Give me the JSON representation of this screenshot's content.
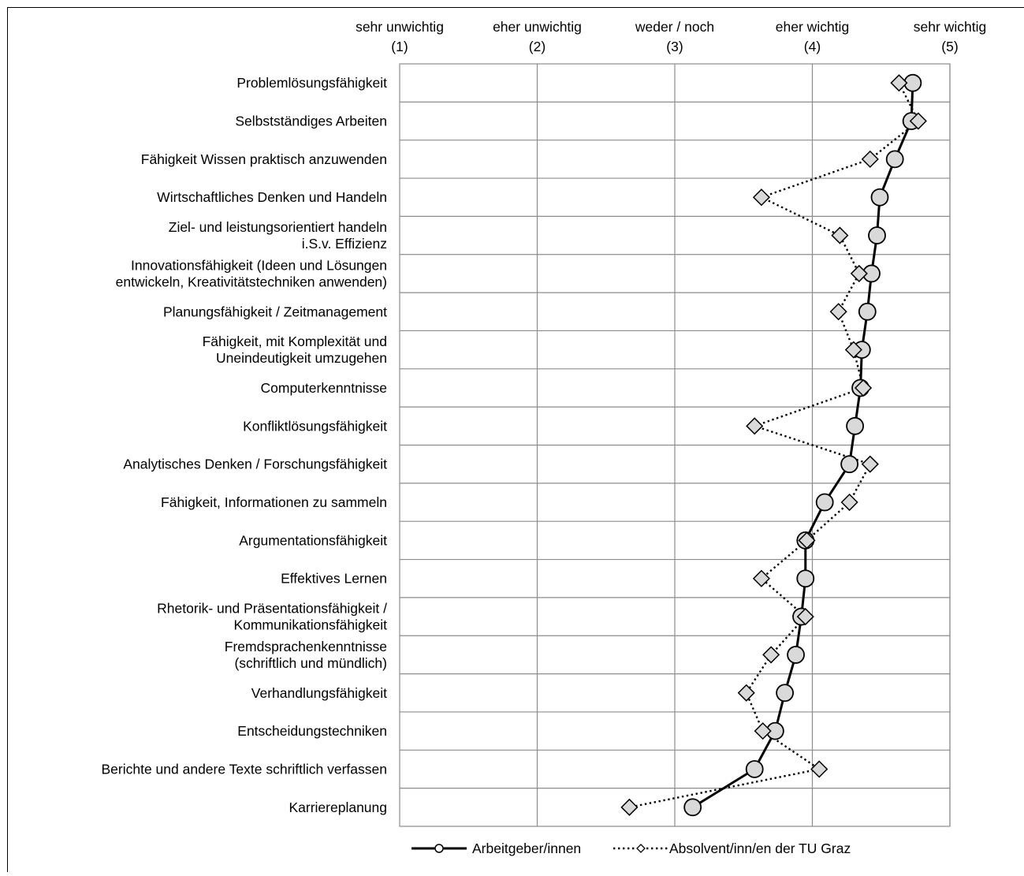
{
  "chart_data": {
    "type": "line",
    "orientation": "horizontal",
    "x_axis_position": "top",
    "x_ticks": [
      {
        "value": 1,
        "label": "sehr unwichtig",
        "sub": "(1)"
      },
      {
        "value": 2,
        "label": "eher unwichtig",
        "sub": "(2)"
      },
      {
        "value": 3,
        "label": "weder / noch",
        "sub": "(3)"
      },
      {
        "value": 4,
        "label": "eher wichtig",
        "sub": "(4)"
      },
      {
        "value": 5,
        "label": "sehr wichtig",
        "sub": "(5)"
      }
    ],
    "xlim": [
      1,
      5
    ],
    "grid": true,
    "legend_position": "bottom",
    "categories": [
      [
        "Problemlösungsfähigkeit"
      ],
      [
        "Selbstständiges Arbeiten"
      ],
      [
        "Fähigkeit Wissen praktisch anzuwenden"
      ],
      [
        "Wirtschaftliches Denken und Handeln"
      ],
      [
        "Ziel- und leistungsorientiert handeln",
        "i.S.v. Effizienz"
      ],
      [
        "Innovationsfähigkeit (Ideen und Lösungen",
        "entwickeln, Kreativitätstechniken anwenden)"
      ],
      [
        "Planungsfähigkeit / Zeitmanagement"
      ],
      [
        "Fähigkeit, mit Komplexität und",
        "Uneindeutigkeit umzugehen"
      ],
      [
        "Computerkenntnisse"
      ],
      [
        "Konfliktlösungsfähigkeit"
      ],
      [
        "Analytisches Denken / Forschungsfähigkeit"
      ],
      [
        "Fähigkeit, Informationen zu sammeln"
      ],
      [
        "Argumentationsfähigkeit"
      ],
      [
        "Effektives Lernen"
      ],
      [
        "Rhetorik- und Präsentationsfähigkeit /",
        "Kommunikationsfähigkeit"
      ],
      [
        "Fremdsprachenkenntnisse",
        "(schriftlich und mündlich)"
      ],
      [
        "Verhandlungsfähigkeit"
      ],
      [
        "Entscheidungstechniken"
      ],
      [
        "Berichte und andere Texte schriftlich verfassen"
      ],
      [
        "Karriereplanung"
      ]
    ],
    "series": [
      {
        "name": "Arbeitgeber/innen",
        "style": "solid",
        "marker": "circle",
        "color": "#000000",
        "marker_fill": "#d9d9d9",
        "values": [
          4.73,
          4.72,
          4.6,
          4.49,
          4.47,
          4.43,
          4.4,
          4.36,
          4.35,
          4.31,
          4.27,
          4.09,
          3.95,
          3.95,
          3.92,
          3.88,
          3.8,
          3.73,
          3.58,
          3.13
        ]
      },
      {
        "name": "Absolvent/inn/en der TU Graz",
        "style": "dotted",
        "marker": "diamond",
        "color": "#000000",
        "marker_fill": "#d9d9d9",
        "values": [
          4.63,
          4.77,
          4.42,
          3.63,
          4.2,
          4.34,
          4.19,
          4.3,
          4.37,
          3.58,
          4.42,
          4.27,
          3.96,
          3.63,
          3.95,
          3.7,
          3.52,
          3.64,
          4.05,
          2.67
        ]
      }
    ]
  }
}
